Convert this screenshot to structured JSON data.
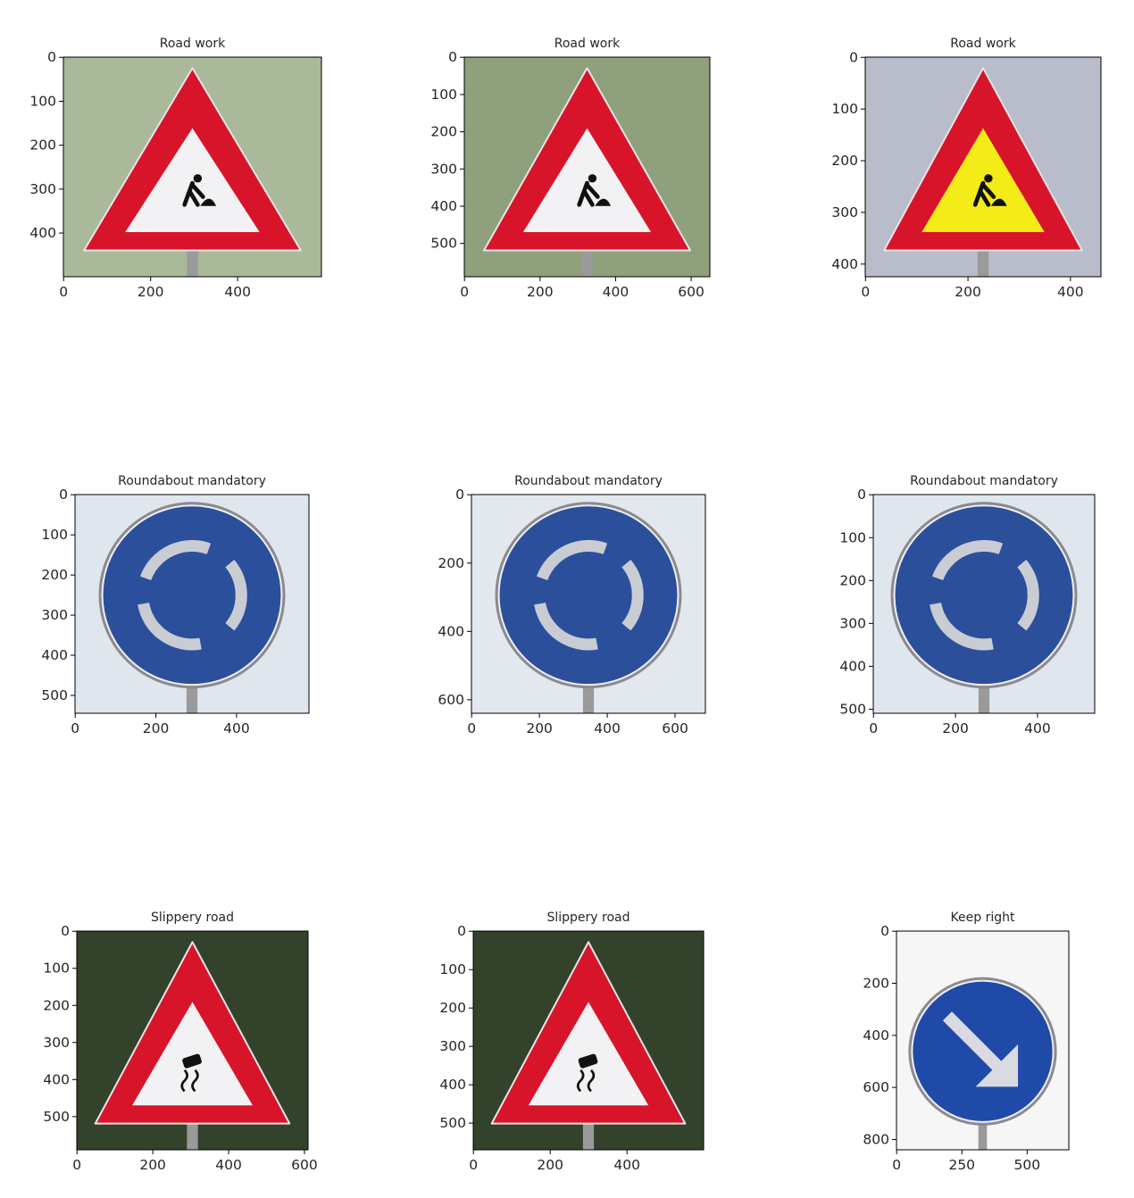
{
  "chart_data": [
    {
      "type": "image",
      "title": "Road work",
      "width": 593,
      "height": 500,
      "xticks": [
        0,
        200,
        400
      ],
      "yticks": [
        0,
        100,
        200,
        300,
        400
      ],
      "sign": "warning-triangle",
      "glyph": "worker",
      "fill": "#f2f2f4",
      "bg": "#a9b99a"
    },
    {
      "type": "image",
      "title": "Road work",
      "width": 650,
      "height": 590,
      "xticks": [
        0,
        200,
        400,
        600
      ],
      "yticks": [
        0,
        100,
        200,
        300,
        400,
        500
      ],
      "sign": "warning-triangle",
      "glyph": "worker",
      "fill": "#f2f2f4",
      "bg": "#8fa07c"
    },
    {
      "type": "image",
      "title": "Road work",
      "width": 460,
      "height": 425,
      "xticks": [
        0,
        200,
        400
      ],
      "yticks": [
        0,
        100,
        200,
        300,
        400
      ],
      "sign": "warning-triangle",
      "glyph": "worker",
      "fill": "#f4ec18",
      "bg": "#b9bccb"
    },
    {
      "type": "image",
      "title": "Roundabout mandatory",
      "width": 580,
      "height": 545,
      "xticks": [
        0,
        200,
        400
      ],
      "yticks": [
        0,
        100,
        200,
        300,
        400,
        500
      ],
      "sign": "round",
      "glyph": "roundabout",
      "fill": "#2c4f9c",
      "bg": "#dfe6ee"
    },
    {
      "type": "image",
      "title": "Roundabout mandatory",
      "width": 690,
      "height": 640,
      "xticks": [
        0,
        200,
        400,
        600
      ],
      "yticks": [
        0,
        200,
        400,
        600
      ],
      "sign": "round",
      "glyph": "roundabout",
      "fill": "#2c4f9c",
      "bg": "#e3e8ee"
    },
    {
      "type": "image",
      "title": "Roundabout mandatory",
      "width": 540,
      "height": 510,
      "xticks": [
        0,
        200,
        400
      ],
      "yticks": [
        0,
        100,
        200,
        300,
        400,
        500
      ],
      "sign": "round",
      "glyph": "roundabout",
      "fill": "#2c4f9c",
      "bg": "#dfe6ee"
    },
    {
      "type": "image",
      "title": "Slippery road",
      "width": 610,
      "height": 590,
      "xticks": [
        0,
        200,
        400,
        600
      ],
      "yticks": [
        0,
        100,
        200,
        300,
        400,
        500
      ],
      "sign": "warning-triangle",
      "glyph": "car",
      "fill": "#f2f2f4",
      "bg": "#33422b"
    },
    {
      "type": "image",
      "title": "Slippery road",
      "width": 600,
      "height": 570,
      "xticks": [
        0,
        200,
        400
      ],
      "yticks": [
        0,
        100,
        200,
        300,
        400,
        500
      ],
      "sign": "warning-triangle",
      "glyph": "car",
      "fill": "#f2f2f4",
      "bg": "#33422b"
    },
    {
      "type": "image",
      "title": "Keep right",
      "width": 660,
      "height": 840,
      "xticks": [
        0,
        250,
        500
      ],
      "yticks": [
        0,
        200,
        400,
        600,
        800
      ],
      "sign": "round",
      "glyph": "arrow",
      "fill": "#1f4aa8",
      "bg": "#f6f6f6"
    }
  ]
}
